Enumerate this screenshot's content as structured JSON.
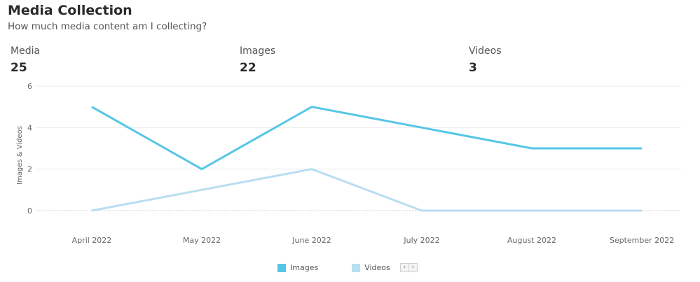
{
  "header": {
    "title": "Media Collection",
    "subtitle": "How much media content am I collecting?"
  },
  "kpis": [
    {
      "label": "Media",
      "value": "25"
    },
    {
      "label": "Images",
      "value": "22"
    },
    {
      "label": "Videos",
      "value": "3"
    }
  ],
  "colors": {
    "images": "#56c6e6",
    "videos": "#b8def0",
    "grid": "#ececec",
    "zero_line": "#c8c8c8"
  },
  "chart_data": {
    "type": "line",
    "title": "",
    "xlabel": "",
    "ylabel": "Images & Videos",
    "categories": [
      "April 2022",
      "May 2022",
      "June 2022",
      "July 2022",
      "August 2022",
      "September 2022"
    ],
    "series": [
      {
        "name": "Images",
        "values": [
          5,
          2,
          5,
          4,
          3,
          3
        ]
      },
      {
        "name": "Videos",
        "values": [
          0,
          1,
          2,
          0,
          0,
          0
        ]
      }
    ],
    "ylim": [
      0,
      6
    ],
    "yticks": [
      "0",
      "2",
      "4",
      "6"
    ],
    "grid": true,
    "legend": "bottom-center"
  },
  "legend_nav": {
    "prev_icon": "chevron-left-icon",
    "next_icon": "chevron-right-icon",
    "prev_glyph": "‹",
    "next_glyph": "›"
  }
}
